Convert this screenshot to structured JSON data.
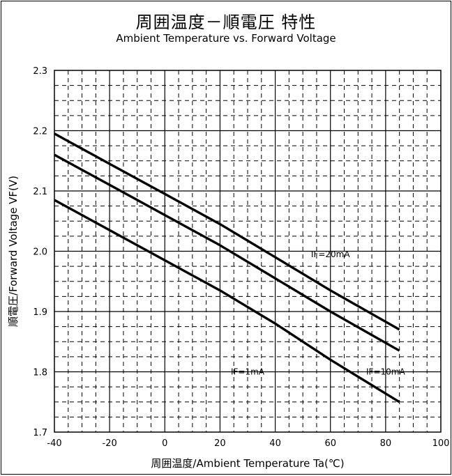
{
  "chart_data": {
    "type": "line",
    "title": "周囲温度－順電圧 特性",
    "subtitle": "Ambient Temperature vs. Forward Voltage",
    "xlabel": "周囲温度/Ambient Temperature Ta(℃)",
    "ylabel": "順電圧/Forward Voltage VF(V)",
    "xlim": [
      -40,
      100
    ],
    "ylim": [
      1.7,
      2.3
    ],
    "xticks": [
      -40,
      -20,
      0,
      20,
      40,
      60,
      80,
      100
    ],
    "yticks": [
      1.7,
      1.8,
      1.9,
      2.0,
      2.1,
      2.2,
      2.3
    ],
    "grid": true,
    "series": [
      {
        "name": "IF=20mA",
        "x": [
          -40,
          -20,
          0,
          20,
          40,
          60,
          85
        ],
        "y": [
          2.195,
          2.145,
          2.095,
          2.045,
          1.99,
          1.935,
          1.87
        ]
      },
      {
        "name": "IF=10mA",
        "x": [
          -40,
          -20,
          0,
          20,
          40,
          60,
          85
        ],
        "y": [
          2.16,
          2.11,
          2.06,
          2.01,
          1.955,
          1.9,
          1.835
        ]
      },
      {
        "name": "IF=1mA",
        "x": [
          -40,
          -20,
          0,
          20,
          40,
          60,
          85
        ],
        "y": [
          2.085,
          2.035,
          1.985,
          1.935,
          1.88,
          1.82,
          1.75
        ]
      }
    ]
  }
}
